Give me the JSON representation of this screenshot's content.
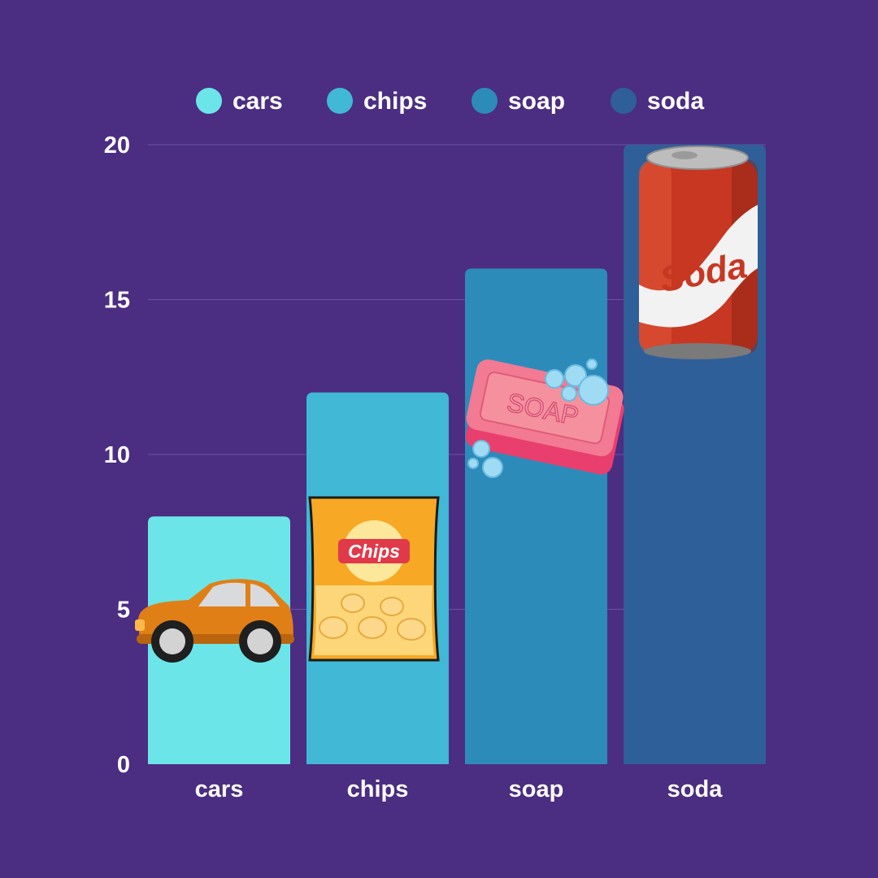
{
  "colors": {
    "background": "#4b2d82",
    "grid": "#6a52a3",
    "text": "#ffffff"
  },
  "chart_data": {
    "type": "bar",
    "categories": [
      "cars",
      "chips",
      "soap",
      "soda"
    ],
    "values": [
      8,
      12,
      16,
      20
    ],
    "bar_colors": [
      "#6ce5e8",
      "#41b8d5",
      "#2d8bba",
      "#2f5f98"
    ],
    "legend": [
      "cars",
      "chips",
      "soap",
      "soda"
    ],
    "legend_position": "top",
    "yticks": [
      0,
      5,
      10,
      15,
      20
    ],
    "ylim": [
      0,
      20
    ],
    "grid": true,
    "bar_icons": [
      "car-icon",
      "chips-bag-icon",
      "soap-bar-icon",
      "soda-can-icon"
    ],
    "icon_text": {
      "chips": "Chips",
      "soap": "SOAP",
      "soda": "Soda"
    }
  }
}
